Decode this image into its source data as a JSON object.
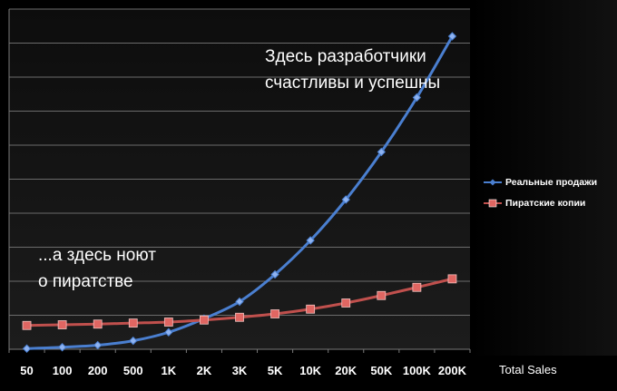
{
  "chart_data": {
    "type": "line",
    "title": "",
    "xlabel": "Total Sales",
    "ylabel": "",
    "categories": [
      "50",
      "100",
      "200",
      "500",
      "1K",
      "2K",
      "3K",
      "5K",
      "10K",
      "20K",
      "50K",
      "100K",
      "200K"
    ],
    "series": [
      {
        "name": "Реальные продажи",
        "color": "#4a7fd0",
        "marker": "diamond",
        "values": [
          0.2,
          0.6,
          1.2,
          2.5,
          5.0,
          9.0,
          14.0,
          22.0,
          32.0,
          44.0,
          58.0,
          74.0,
          92.0
        ]
      },
      {
        "name": "Пиратские копии",
        "color": "#c0504d",
        "marker": "square",
        "values": [
          7.0,
          7.2,
          7.4,
          7.7,
          8.0,
          8.6,
          9.4,
          10.4,
          11.8,
          13.6,
          15.8,
          18.2,
          20.7
        ]
      }
    ],
    "ylim": [
      0,
      100
    ],
    "y_gridlines": 10,
    "grid": true,
    "legend_position": "right",
    "annotations": {
      "top": [
        "Здесь разработчики",
        "счастливы и успешны"
      ],
      "bottom": [
        "...а здесь ноют",
        "о пиратстве"
      ]
    }
  }
}
